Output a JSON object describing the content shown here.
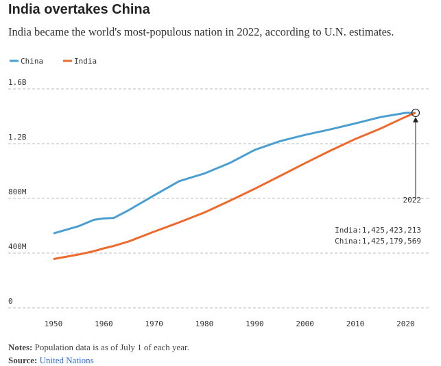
{
  "chart_data": {
    "type": "line",
    "title": "India overtakes China",
    "subtitle": "India became the world's most-populous nation in 2022, according to U.N. estimates.",
    "x": [
      1950,
      1955,
      1958,
      1960,
      1962,
      1965,
      1970,
      1975,
      1980,
      1985,
      1990,
      1995,
      2000,
      2005,
      2010,
      2015,
      2020,
      2022
    ],
    "series": [
      {
        "name": "China",
        "color": "#4a9fd0",
        "values": [
          543980000,
          597000000,
          643000000,
          654000000,
          657000000,
          715000000,
          822000000,
          926000000,
          982000000,
          1058000000,
          1154000000,
          1218000000,
          1264000000,
          1304000000,
          1348000000,
          1394000000,
          1424900000,
          1425179569
        ]
      },
      {
        "name": "India",
        "color": "#ee6a2c",
        "values": [
          357000000,
          390000000,
          414000000,
          435000000,
          453000000,
          486000000,
          557000000,
          625000000,
          697000000,
          782000000,
          870000000,
          963000000,
          1057000000,
          1148000000,
          1234000000,
          1310000000,
          1396000000,
          1425423213
        ]
      }
    ],
    "xlim": [
      1941,
      2025
    ],
    "xticks": [
      1950,
      1960,
      1970,
      1980,
      1990,
      2000,
      2010,
      2020
    ],
    "ylim": [
      0,
      1600000000
    ],
    "yticks": [
      0,
      {
        "value": 400000000,
        "label": "400M"
      },
      {
        "value": 800000000,
        "label": "800M"
      },
      {
        "value": 1200000000,
        "label": "1.2B"
      },
      {
        "value": 1600000000,
        "label": "1.6B"
      }
    ],
    "grid": true,
    "legend": "top-left",
    "annotation": {
      "year": "2022",
      "india": "India:1,425,423,213",
      "china": "China:1,425,179,569"
    },
    "notes_label": "Notes:",
    "notes": "Population data is as of July 1 of each year.",
    "source_label": "Source:",
    "source": "United Nations"
  }
}
